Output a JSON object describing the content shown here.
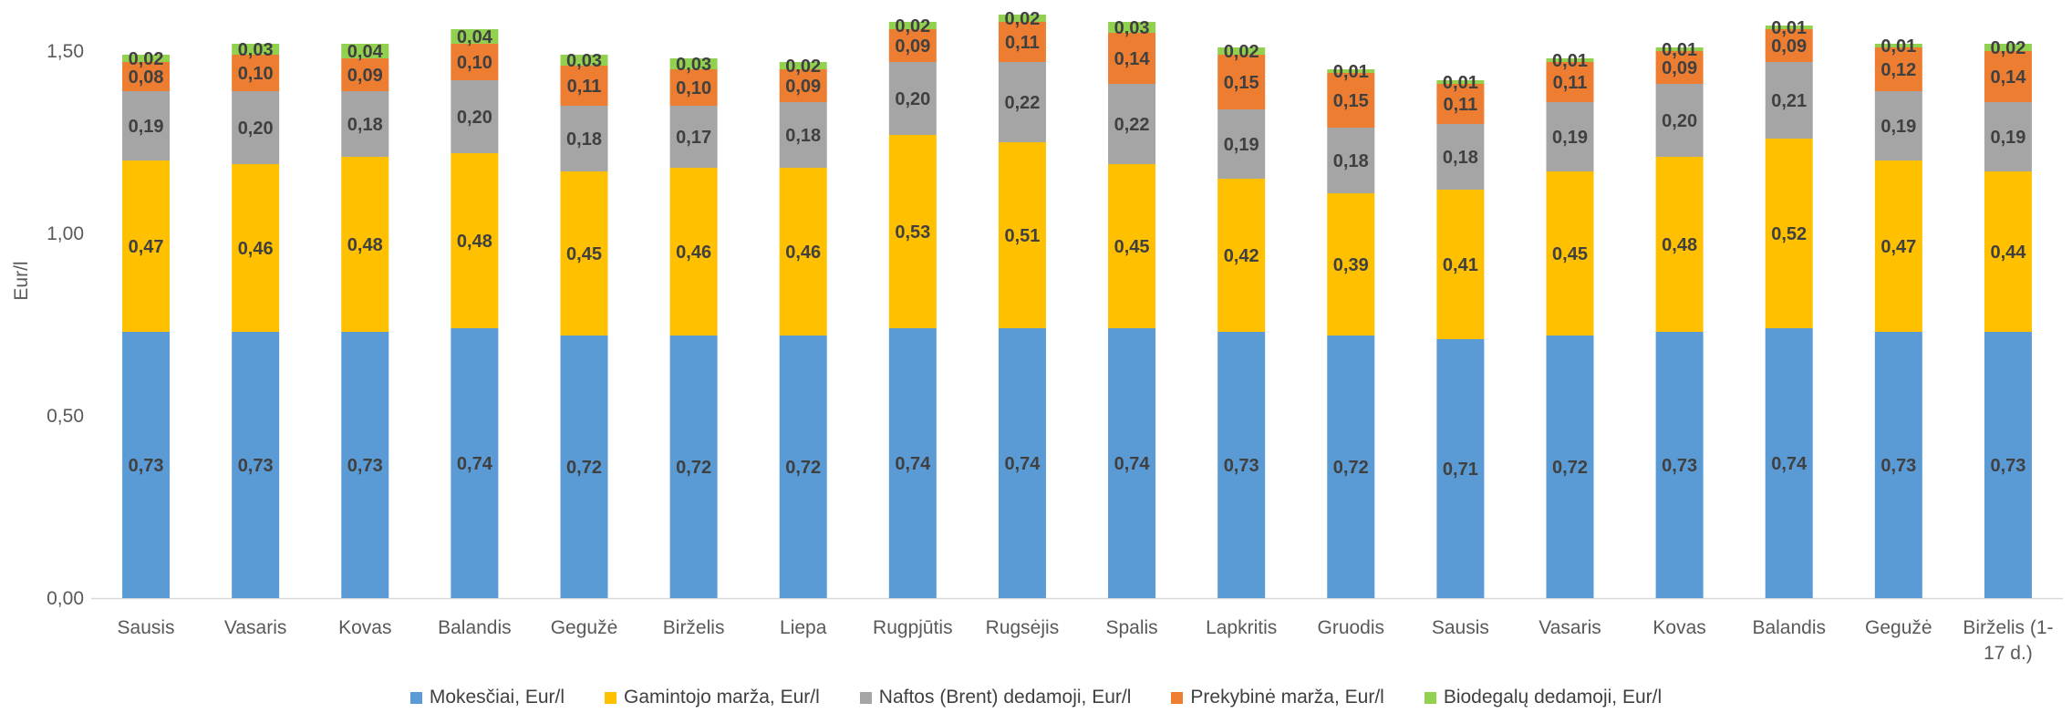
{
  "chart_data": {
    "type": "bar",
    "stacked": true,
    "ylabel": "Eur/l",
    "ylim": [
      0,
      1.6
    ],
    "yticks": [
      {
        "value": 0,
        "label": "0,00"
      },
      {
        "value": 0.5,
        "label": "0,50"
      },
      {
        "value": 1.0,
        "label": "1,00"
      },
      {
        "value": 1.5,
        "label": "1,50"
      }
    ],
    "grid": false,
    "legend_position": "bottom",
    "categories": [
      "Sausis",
      "Vasaris",
      "Kovas",
      "Balandis",
      "Gegužė",
      "Birželis",
      "Liepa",
      "Rugpjūtis",
      "Rugsėjis",
      "Spalis",
      "Lapkritis",
      "Gruodis",
      "Sausis",
      "Vasaris",
      "Kovas",
      "Balandis",
      "Gegužė",
      "Birželis (1-17 d.)"
    ],
    "category_label_lines": [
      [
        "Sausis"
      ],
      [
        "Vasaris"
      ],
      [
        "Kovas"
      ],
      [
        "Balandis"
      ],
      [
        "Gegužė"
      ],
      [
        "Birželis"
      ],
      [
        "Liepa"
      ],
      [
        "Rugpjūtis"
      ],
      [
        "Rugsėjis"
      ],
      [
        "Spalis"
      ],
      [
        "Lapkritis"
      ],
      [
        "Gruodis"
      ],
      [
        "Sausis"
      ],
      [
        "Vasaris"
      ],
      [
        "Kovas"
      ],
      [
        "Balandis"
      ],
      [
        "Gegužė"
      ],
      [
        "Birželis (1-",
        "17 d.)"
      ]
    ],
    "series": [
      {
        "name": "Mokesčiai, Eur/l",
        "color": "#5B9BD5",
        "values": [
          0.73,
          0.73,
          0.73,
          0.74,
          0.72,
          0.72,
          0.72,
          0.74,
          0.74,
          0.74,
          0.73,
          0.72,
          0.71,
          0.72,
          0.73,
          0.74,
          0.73,
          0.73
        ],
        "labels": [
          "0,73",
          "0,73",
          "0,73",
          "0,74",
          "0,72",
          "0,72",
          "0,72",
          "0,74",
          "0,74",
          "0,74",
          "0,73",
          "0,72",
          "0,71",
          "0,72",
          "0,73",
          "0,74",
          "0,73",
          "0,73"
        ]
      },
      {
        "name": "Gamintojo marža, Eur/l",
        "color": "#FFC000",
        "values": [
          0.47,
          0.46,
          0.48,
          0.48,
          0.45,
          0.46,
          0.46,
          0.53,
          0.51,
          0.45,
          0.42,
          0.39,
          0.41,
          0.45,
          0.48,
          0.52,
          0.47,
          0.44
        ],
        "labels": [
          "0,47",
          "0,46",
          "0,48",
          "0,48",
          "0,45",
          "0,46",
          "0,46",
          "0,53",
          "0,51",
          "0,45",
          "0,42",
          "0,39",
          "0,41",
          "0,45",
          "0,48",
          "0,52",
          "0,47",
          "0,44"
        ]
      },
      {
        "name": "Naftos (Brent) dedamoji, Eur/l",
        "color": "#A5A5A5",
        "values": [
          0.19,
          0.2,
          0.18,
          0.2,
          0.18,
          0.17,
          0.18,
          0.2,
          0.22,
          0.22,
          0.19,
          0.18,
          0.18,
          0.19,
          0.2,
          0.21,
          0.19,
          0.19
        ],
        "labels": [
          "0,19",
          "0,20",
          "0,18",
          "0,20",
          "0,18",
          "0,17",
          "0,18",
          "0,20",
          "0,22",
          "0,22",
          "0,19",
          "0,18",
          "0,18",
          "0,19",
          "0,20",
          "0,21",
          "0,19",
          "0,19"
        ]
      },
      {
        "name": "Prekybinė marža, Eur/l",
        "color": "#ED7D31",
        "values": [
          0.08,
          0.1,
          0.09,
          0.1,
          0.11,
          0.1,
          0.09,
          0.09,
          0.11,
          0.14,
          0.15,
          0.15,
          0.11,
          0.11,
          0.09,
          0.09,
          0.12,
          0.14
        ],
        "labels": [
          "0,08",
          "0,10",
          "0,09",
          "0,10",
          "0,11",
          "0,10",
          "0,09",
          "0,09",
          "0,11",
          "0,14",
          "0,15",
          "0,15",
          "0,11",
          "0,11",
          "0,09",
          "0,09",
          "0,12",
          "0,14"
        ]
      },
      {
        "name": "Biodegalų dedamoji, Eur/l",
        "color": "#92D050",
        "values": [
          0.02,
          0.03,
          0.04,
          0.04,
          0.03,
          0.03,
          0.02,
          0.02,
          0.02,
          0.03,
          0.02,
          0.01,
          0.01,
          0.01,
          0.01,
          0.01,
          0.01,
          0.02
        ],
        "labels": [
          "0,02",
          "0,03",
          "0,04",
          "0,04",
          "0,03",
          "0,03",
          "0,02",
          "0,02",
          "0,02",
          "0,03",
          "0,02",
          "0,01",
          "0,01",
          "0,01",
          "0,01",
          "0,01",
          "0,01",
          "0,02"
        ]
      }
    ],
    "colors": {
      "axis": "#D9D9D9",
      "tick_text": "#595959",
      "data_label": "#404040"
    }
  }
}
